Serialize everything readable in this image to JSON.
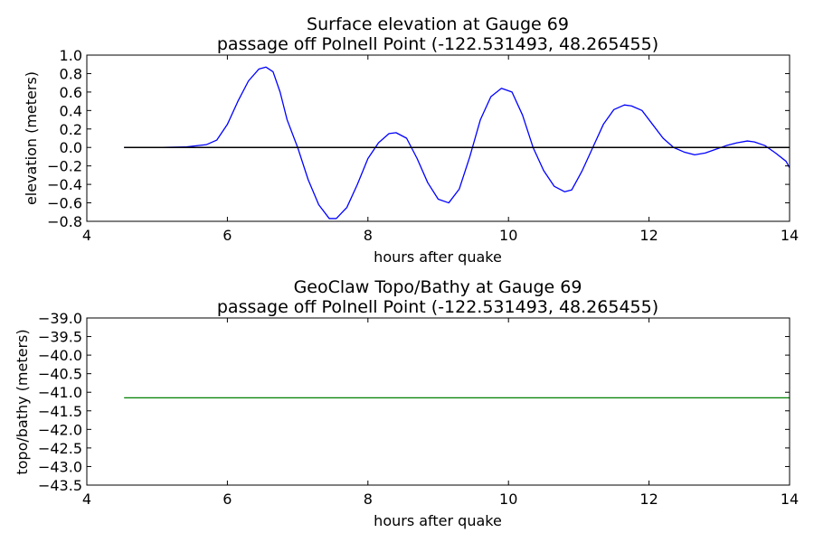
{
  "chart_data": [
    {
      "type": "line",
      "title": "Surface elevation at Gauge 69",
      "subtitle": "passage off Polnell Point  (-122.531493, 48.265455)",
      "xlabel": "hours after quake",
      "ylabel": "elevation (meters)",
      "xlim": [
        4,
        14
      ],
      "ylim": [
        -0.8,
        1.0
      ],
      "xticks": [
        4,
        6,
        8,
        10,
        12,
        14
      ],
      "yticks": [
        -0.8,
        -0.6,
        -0.4,
        -0.2,
        0.0,
        0.2,
        0.4,
        0.6,
        0.8,
        1.0
      ],
      "xtick_labels": [
        "4",
        "6",
        "8",
        "10",
        "12",
        "14"
      ],
      "ytick_labels": [
        "−0.8",
        "−0.6",
        "−0.4",
        "−0.2",
        "0.0",
        "0.2",
        "0.4",
        "0.6",
        "0.8",
        "1.0"
      ],
      "grid": false,
      "series": [
        {
          "color": "#0000ff",
          "x": [
            4.53,
            5.0,
            5.4,
            5.7,
            5.85,
            6.0,
            6.15,
            6.3,
            6.45,
            6.55,
            6.65,
            6.75,
            6.85,
            7.0,
            7.15,
            7.3,
            7.45,
            7.55,
            7.7,
            7.85,
            8.0,
            8.15,
            8.3,
            8.4,
            8.55,
            8.7,
            8.85,
            9.0,
            9.15,
            9.3,
            9.45,
            9.6,
            9.75,
            9.9,
            10.05,
            10.2,
            10.35,
            10.5,
            10.65,
            10.8,
            10.9,
            11.05,
            11.2,
            11.35,
            11.5,
            11.65,
            11.75,
            11.9,
            12.05,
            12.2,
            12.35,
            12.5,
            12.65,
            12.8,
            12.95,
            13.1,
            13.25,
            13.4,
            13.5,
            13.65,
            13.8,
            13.95,
            14.0
          ],
          "y": [
            0.0,
            0.0,
            0.005,
            0.03,
            0.08,
            0.25,
            0.5,
            0.72,
            0.85,
            0.87,
            0.82,
            0.6,
            0.3,
            0.0,
            -0.35,
            -0.62,
            -0.77,
            -0.77,
            -0.65,
            -0.4,
            -0.12,
            0.05,
            0.15,
            0.16,
            0.1,
            -0.12,
            -0.38,
            -0.56,
            -0.6,
            -0.45,
            -0.1,
            0.3,
            0.55,
            0.64,
            0.6,
            0.35,
            0.0,
            -0.25,
            -0.42,
            -0.48,
            -0.46,
            -0.25,
            0.0,
            0.25,
            0.41,
            0.46,
            0.45,
            0.4,
            0.25,
            0.1,
            0.0,
            -0.05,
            -0.08,
            -0.06,
            -0.02,
            0.02,
            0.05,
            0.07,
            0.06,
            0.02,
            -0.06,
            -0.15,
            -0.22
          ]
        },
        {
          "color": "#000000",
          "x": [
            4.53,
            14.0
          ],
          "y": [
            0.0,
            0.0
          ]
        }
      ]
    },
    {
      "type": "line",
      "title": "GeoClaw Topo/Bathy at Gauge 69",
      "subtitle": "passage off Polnell Point  (-122.531493, 48.265455)",
      "xlabel": "hours after quake",
      "ylabel": "topo/bathy (meters)",
      "xlim": [
        4,
        14
      ],
      "ylim": [
        -43.5,
        -39.0
      ],
      "xticks": [
        4,
        6,
        8,
        10,
        12,
        14
      ],
      "yticks": [
        -43.5,
        -43.0,
        -42.5,
        -42.0,
        -41.5,
        -41.0,
        -40.5,
        -40.0,
        -39.5,
        -39.0
      ],
      "xtick_labels": [
        "4",
        "6",
        "8",
        "10",
        "12",
        "14"
      ],
      "ytick_labels": [
        "−43.5",
        "−43.0",
        "−42.5",
        "−42.0",
        "−41.5",
        "−41.0",
        "−40.5",
        "−40.0",
        "−39.5",
        "−39.0"
      ],
      "grid": false,
      "series": [
        {
          "color": "#008000",
          "x": [
            4.53,
            14.0
          ],
          "y": [
            -41.15,
            -41.15
          ]
        }
      ]
    }
  ]
}
